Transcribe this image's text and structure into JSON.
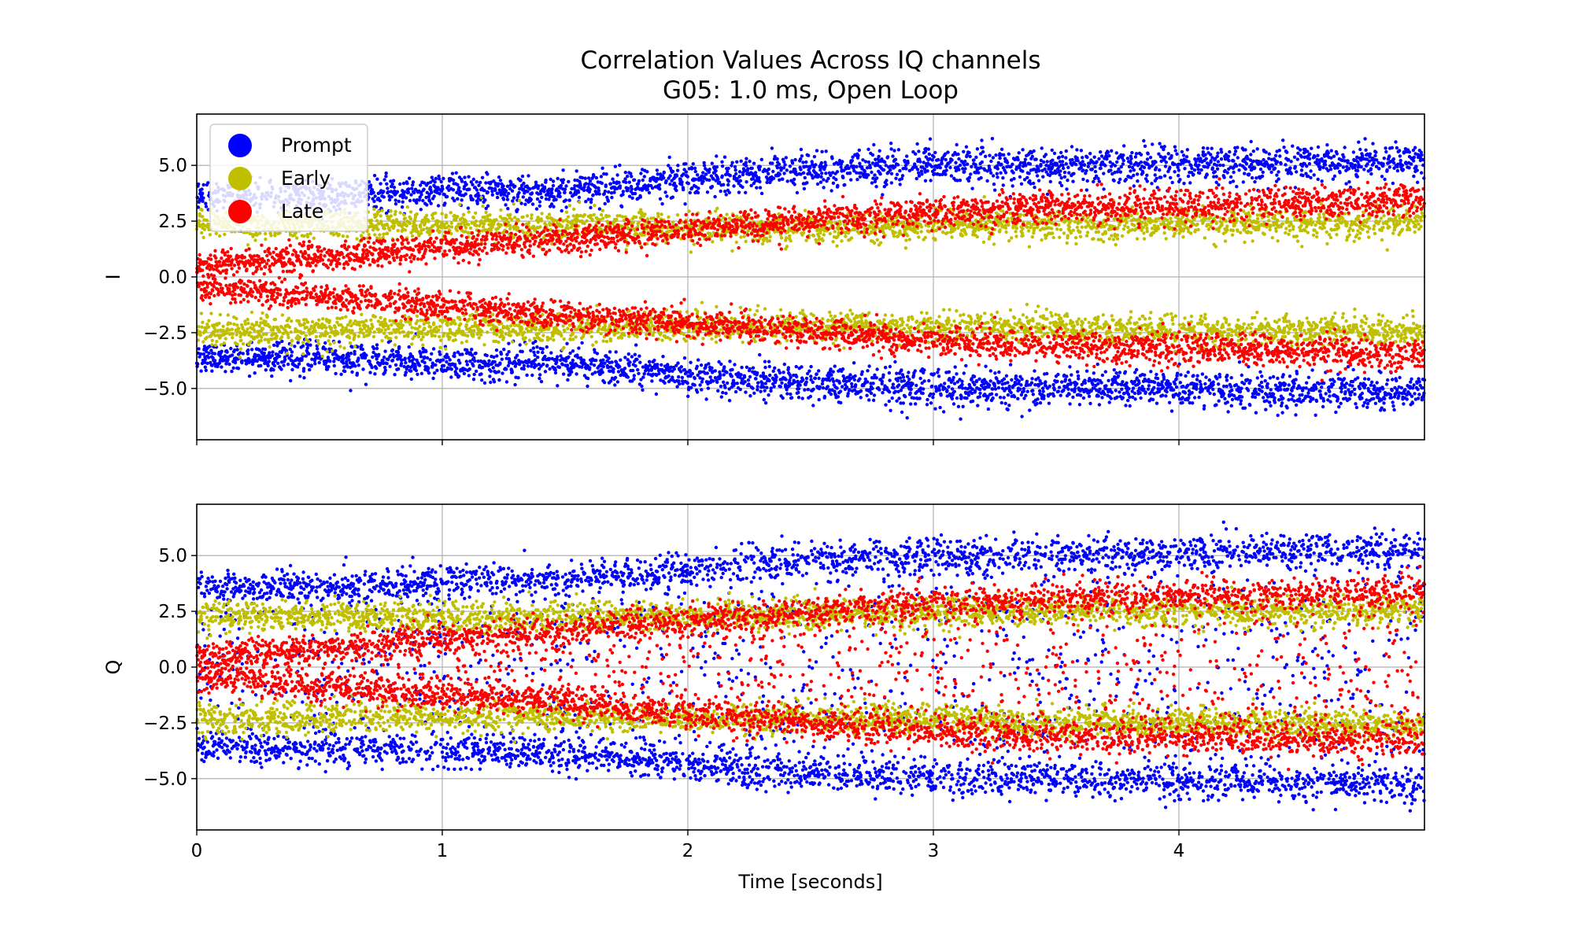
{
  "figure": {
    "title_line1": "Correlation Values Across IQ channels",
    "title_line2": "G05: 1.0 ms, Open Loop"
  },
  "chart_data": [
    {
      "type": "scatter",
      "ylabel": "I",
      "xlabel": "",
      "xlim": [
        0,
        5.0
      ],
      "ylim": [
        -7.3,
        7.3
      ],
      "x_ticks": [
        "0",
        "1",
        "2",
        "3",
        "4"
      ],
      "y_ticks": [
        "5.0",
        "2.5",
        "0.0",
        "−2.5",
        "−5.0"
      ],
      "grid": true,
      "legend": {
        "placement": "upper-left",
        "entries": [
          {
            "name": "Prompt",
            "color": "#0000ff"
          },
          {
            "name": "Early",
            "color": "#bfbf00"
          },
          {
            "name": "Late",
            "color": "#ff0000"
          }
        ]
      },
      "series": [
        {
          "name": "Prompt",
          "color": "#0000ff",
          "envelope_t": [
            0,
            0.5,
            1,
            1.5,
            2,
            2.5,
            3,
            3.5,
            4,
            4.5,
            5
          ],
          "amplitude": [
            3.6,
            3.6,
            3.9,
            3.8,
            4.4,
            4.8,
            5.0,
            5.0,
            5.0,
            5.1,
            5.2
          ]
        },
        {
          "name": "Early",
          "color": "#bfbf00",
          "envelope_t": [
            0,
            0.5,
            1,
            1.5,
            2,
            2.5,
            3,
            3.5,
            4,
            4.5,
            5
          ],
          "amplitude": [
            2.4,
            2.4,
            2.3,
            2.3,
            2.2,
            2.2,
            2.3,
            2.3,
            2.4,
            2.4,
            2.5
          ]
        },
        {
          "name": "Late",
          "color": "#ff0000",
          "envelope_t": [
            0,
            0.5,
            1,
            1.5,
            2,
            2.5,
            3,
            3.5,
            4,
            4.5,
            5
          ],
          "amplitude": [
            0.5,
            0.9,
            1.3,
            1.7,
            2.1,
            2.5,
            2.9,
            3.1,
            3.2,
            3.3,
            3.5
          ]
        }
      ]
    },
    {
      "type": "scatter",
      "ylabel": "Q",
      "xlabel": "Time [seconds]",
      "xlim": [
        0,
        5.0
      ],
      "ylim": [
        -7.3,
        7.3
      ],
      "x_ticks": [
        "0",
        "1",
        "2",
        "3",
        "4"
      ],
      "y_ticks": [
        "5.0",
        "2.5",
        "0.0",
        "−2.5",
        "−5.0"
      ],
      "grid": true,
      "series": [
        {
          "name": "Prompt",
          "color": "#0000ff",
          "envelope_t": [
            0,
            0.5,
            1,
            1.5,
            2,
            2.5,
            3,
            3.5,
            4,
            4.5,
            5
          ],
          "amplitude": [
            3.6,
            3.6,
            3.9,
            3.9,
            4.4,
            4.8,
            5.0,
            5.0,
            5.1,
            5.2,
            5.2
          ]
        },
        {
          "name": "Early",
          "color": "#bfbf00",
          "envelope_t": [
            0,
            0.5,
            1,
            1.5,
            2,
            2.5,
            3,
            3.5,
            4,
            4.5,
            5
          ],
          "amplitude": [
            2.3,
            2.3,
            2.2,
            2.2,
            2.3,
            2.3,
            2.4,
            2.5,
            2.5,
            2.5,
            2.6
          ]
        },
        {
          "name": "Late",
          "color": "#ff0000",
          "envelope_t": [
            0,
            0.5,
            1,
            1.5,
            2,
            2.5,
            3,
            3.5,
            4,
            4.5,
            5
          ],
          "amplitude": [
            0.5,
            0.9,
            1.3,
            1.7,
            2.1,
            2.5,
            2.9,
            3.1,
            3.2,
            3.3,
            3.4
          ]
        }
      ]
    }
  ]
}
